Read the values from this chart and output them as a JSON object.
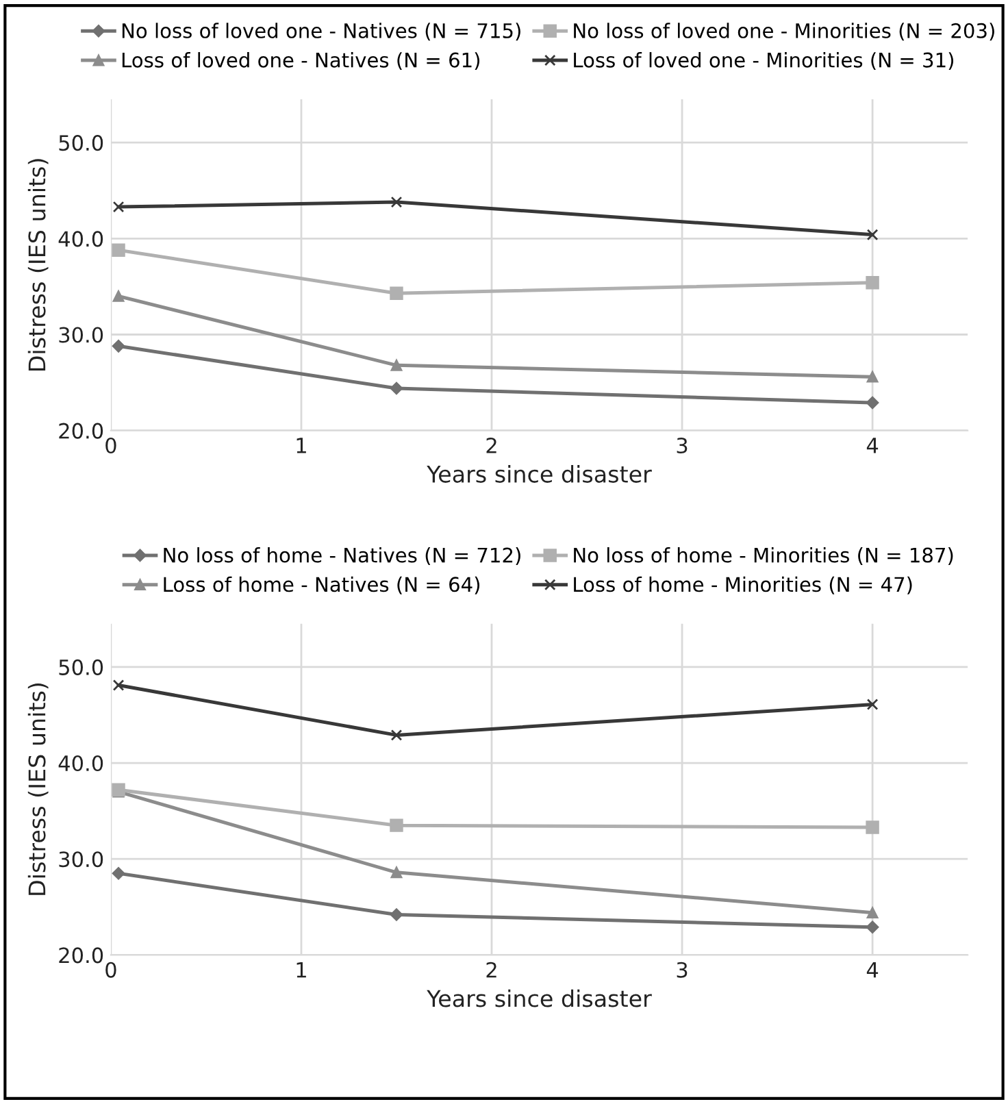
{
  "chart_data": [
    {
      "type": "line",
      "xlabel": "Years since disaster",
      "ylabel": "Distress (IES units)",
      "x": [
        0.04,
        1.5,
        4
      ],
      "xlim": [
        0,
        4.5
      ],
      "xticks": [
        0,
        1,
        2,
        3,
        4
      ],
      "ylim": [
        20,
        54.5
      ],
      "yticks": [
        {
          "value": 20,
          "label": "20.0"
        },
        {
          "value": 30,
          "label": "30.0"
        },
        {
          "value": 40,
          "label": "40.0"
        },
        {
          "value": 50,
          "label": "50.0"
        }
      ],
      "grid": true,
      "legend": "top",
      "series": [
        {
          "name": "No loss of loved one - Natives (N = 715)",
          "color": "#707070",
          "marker": "diamond",
          "values": [
            28.8,
            24.4,
            22.9
          ]
        },
        {
          "name": "No loss of loved one - Minorities (N = 203)",
          "color": "#b0b0b0",
          "marker": "square",
          "values": [
            38.8,
            34.3,
            35.4
          ]
        },
        {
          "name": "Loss of loved one - Natives (N = 61)",
          "color": "#8c8c8c",
          "marker": "triangle",
          "values": [
            34.0,
            26.8,
            25.6
          ]
        },
        {
          "name": "Loss of loved one - Minorities (N = 31)",
          "color": "#383838",
          "marker": "cross",
          "values": [
            43.3,
            43.8,
            40.4
          ]
        }
      ]
    },
    {
      "type": "line",
      "xlabel": "Years since disaster",
      "ylabel": "Distress (IES units)",
      "x": [
        0.04,
        1.5,
        4
      ],
      "xlim": [
        0,
        4.5
      ],
      "xticks": [
        0,
        1,
        2,
        3,
        4
      ],
      "ylim": [
        20,
        54.5
      ],
      "yticks": [
        {
          "value": 20,
          "label": "20.0"
        },
        {
          "value": 30,
          "label": "30.0"
        },
        {
          "value": 40,
          "label": "40.0"
        },
        {
          "value": 50,
          "label": "50.0"
        }
      ],
      "grid": true,
      "legend": "top",
      "series": [
        {
          "name": "No loss of home - Natives (N = 712)",
          "color": "#707070",
          "marker": "diamond",
          "values": [
            28.5,
            24.2,
            22.9
          ]
        },
        {
          "name": "No loss of home - Minorities (N = 187)",
          "color": "#b0b0b0",
          "marker": "square",
          "values": [
            37.2,
            33.5,
            33.3
          ]
        },
        {
          "name": "Loss of home - Natives (N = 64)",
          "color": "#8c8c8c",
          "marker": "triangle",
          "values": [
            37.0,
            28.6,
            24.4
          ]
        },
        {
          "name": "Loss of home - Minorities (N = 47)",
          "color": "#383838",
          "marker": "cross",
          "values": [
            48.1,
            42.9,
            46.1
          ]
        }
      ]
    }
  ]
}
